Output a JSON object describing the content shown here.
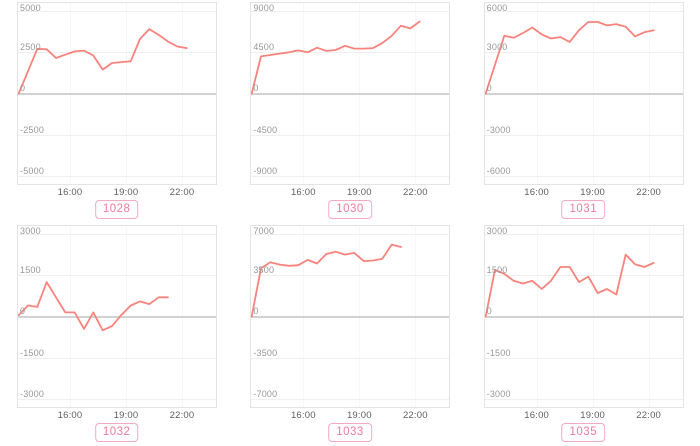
{
  "style": {
    "line_color": "#f8837d",
    "grid_color": "#efefef",
    "zero_line_color": "#d2d2d2",
    "plot_border_color": "#e4e4e4",
    "y_label_color": "#979797",
    "x_label_color": "#5e5e5e",
    "badge_text_color": "#ee7b9d",
    "badge_border_color": "#f6a9bf",
    "background": "#ffffff"
  },
  "x_axis": {
    "tick_labels": [
      "16:00",
      "19:00",
      "22:00"
    ]
  },
  "chart_data": [
    {
      "type": "line",
      "label": "1028",
      "ylim": [
        -5000,
        5000
      ],
      "ymax": 5000,
      "y_tick_labels": [
        "5000",
        "2500",
        "0",
        "-2500",
        "-5000"
      ],
      "x_start_hour": 13.25,
      "x_step_hours": 0.5,
      "values": [
        0,
        1350,
        2700,
        2680,
        2150,
        2350,
        2550,
        2600,
        2300,
        1450,
        1850,
        1900,
        1950,
        3300,
        3900,
        3550,
        3150,
        2850,
        2750
      ]
    },
    {
      "type": "line",
      "label": "1030",
      "ylim": [
        -9000,
        9000
      ],
      "ymax": 9000,
      "y_tick_labels": [
        "9000",
        "4500",
        "0",
        "-4500",
        "-9000"
      ],
      "x_start_hour": 13.25,
      "x_step_hours": 0.5,
      "values": [
        0,
        4050,
        4200,
        4350,
        4500,
        4700,
        4500,
        5000,
        4650,
        4750,
        5200,
        4900,
        4900,
        4950,
        5500,
        6300,
        7400,
        7100,
        7850
      ]
    },
    {
      "type": "line",
      "label": "1031",
      "ylim": [
        -6000,
        6000
      ],
      "ymax": 6000,
      "y_tick_labels": [
        "6000",
        "3000",
        "0",
        "-3000",
        "-6000"
      ],
      "x_start_hour": 13.25,
      "x_step_hours": 0.5,
      "values": [
        0,
        2100,
        4200,
        4050,
        4400,
        4800,
        4300,
        4000,
        4100,
        3750,
        4600,
        5200,
        5200,
        4950,
        5050,
        4850,
        4150,
        4450,
        4600
      ]
    },
    {
      "type": "line",
      "label": "1032",
      "ylim": [
        -3000,
        3000
      ],
      "ymax": 3000,
      "y_tick_labels": [
        "3000",
        "1500",
        "0",
        "-1500",
        "-3000"
      ],
      "x_start_hour": 13.25,
      "x_step_hours": 0.5,
      "values": [
        50,
        400,
        350,
        1250,
        700,
        150,
        150,
        -450,
        150,
        -500,
        -350,
        50,
        400,
        550,
        450,
        700,
        700
      ]
    },
    {
      "type": "line",
      "label": "1033",
      "ylim": [
        -7000,
        7000
      ],
      "ymax": 7000,
      "y_tick_labels": [
        "7000",
        "3500",
        "0",
        "-3500",
        "-7000"
      ],
      "x_start_hour": 13.25,
      "x_step_hours": 0.5,
      "values": [
        0,
        4100,
        4600,
        4400,
        4300,
        4350,
        4800,
        4500,
        5300,
        5500,
        5250,
        5400,
        4700,
        4750,
        4900,
        6100,
        5900
      ]
    },
    {
      "type": "line",
      "label": "1035",
      "ylim": [
        -3000,
        3000
      ],
      "ymax": 3000,
      "y_tick_labels": [
        "3000",
        "1500",
        "0",
        "-1500",
        "-3000"
      ],
      "x_start_hour": 13.25,
      "x_step_hours": 0.5,
      "values": [
        0,
        1700,
        1550,
        1300,
        1200,
        1300,
        1000,
        1300,
        1800,
        1800,
        1250,
        1450,
        850,
        1000,
        800,
        2250,
        1900,
        1800,
        1950
      ]
    }
  ]
}
